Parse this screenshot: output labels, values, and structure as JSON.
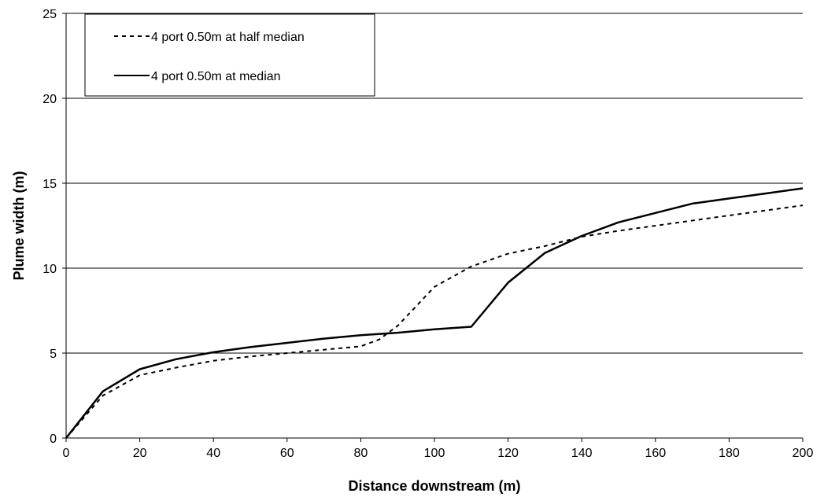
{
  "chart_data": {
    "type": "line",
    "title": "",
    "xlabel": "Distance downstream (m)",
    "ylabel": "Plume width (m)",
    "xlim": [
      0,
      200
    ],
    "ylim": [
      0,
      25
    ],
    "xticks": [
      0,
      20,
      40,
      60,
      80,
      100,
      120,
      140,
      160,
      180,
      200
    ],
    "yticks": [
      0,
      5,
      10,
      15,
      20,
      25
    ],
    "grid": "horizontal",
    "legend_position": "top-left",
    "series": [
      {
        "name": "4 port 0.50m at half median",
        "style": "dashed",
        "color": "#000000",
        "x": [
          0,
          10,
          20,
          30,
          40,
          50,
          60,
          70,
          80,
          85,
          90,
          100,
          110,
          120,
          130,
          140,
          150,
          160,
          170,
          180,
          190,
          200
        ],
        "y": [
          0,
          2.5,
          3.7,
          4.15,
          4.55,
          4.8,
          5.0,
          5.2,
          5.4,
          5.8,
          6.6,
          8.9,
          10.1,
          10.85,
          11.3,
          11.85,
          12.2,
          12.5,
          12.8,
          13.1,
          13.4,
          13.7
        ]
      },
      {
        "name": "4 port 0.50m at median",
        "style": "solid",
        "color": "#000000",
        "x": [
          0,
          10,
          20,
          30,
          40,
          50,
          60,
          70,
          80,
          90,
          100,
          110,
          120,
          130,
          140,
          150,
          160,
          170,
          180,
          190,
          200
        ],
        "y": [
          0,
          2.75,
          4.05,
          4.65,
          5.05,
          5.35,
          5.6,
          5.85,
          6.05,
          6.2,
          6.4,
          6.55,
          9.15,
          10.9,
          11.9,
          12.7,
          13.25,
          13.8,
          14.1,
          14.4,
          14.7
        ]
      }
    ]
  }
}
